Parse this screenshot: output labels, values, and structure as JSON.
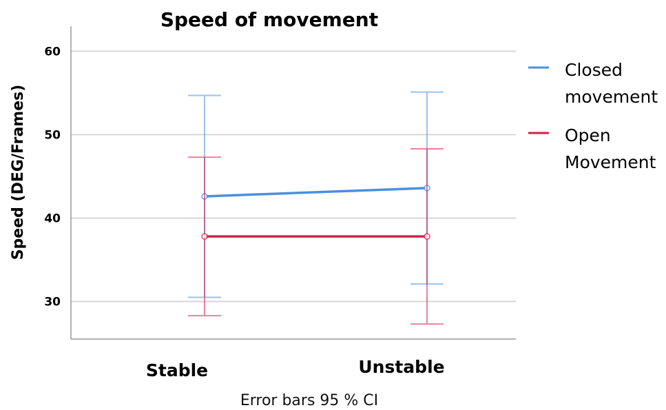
{
  "chart_data": {
    "type": "line",
    "title": "Speed of movement",
    "ylabel": "Speed (DEG/Frames)",
    "xlabel": "",
    "note": "Error bars 95 % CI",
    "categories": [
      "Stable",
      "Unstable"
    ],
    "ylim": [
      25.5,
      63
    ],
    "yticks": [
      30,
      40,
      50,
      60
    ],
    "grid": "horizontal",
    "legend_position": "right",
    "series": [
      {
        "name": "Closed movement",
        "name_lines": [
          "Closed",
          "movement"
        ],
        "color": "#4a8fe0",
        "values": [
          42.6,
          43.6
        ],
        "ci_low": [
          30.5,
          32.1
        ],
        "ci_high": [
          54.7,
          55.1
        ]
      },
      {
        "name": "Open Movement",
        "name_lines": [
          "Open",
          "Movement"
        ],
        "color": "#d81e4a",
        "values": [
          37.8,
          37.8
        ],
        "ci_low": [
          28.3,
          27.3
        ],
        "ci_high": [
          47.3,
          48.3
        ]
      }
    ]
  }
}
